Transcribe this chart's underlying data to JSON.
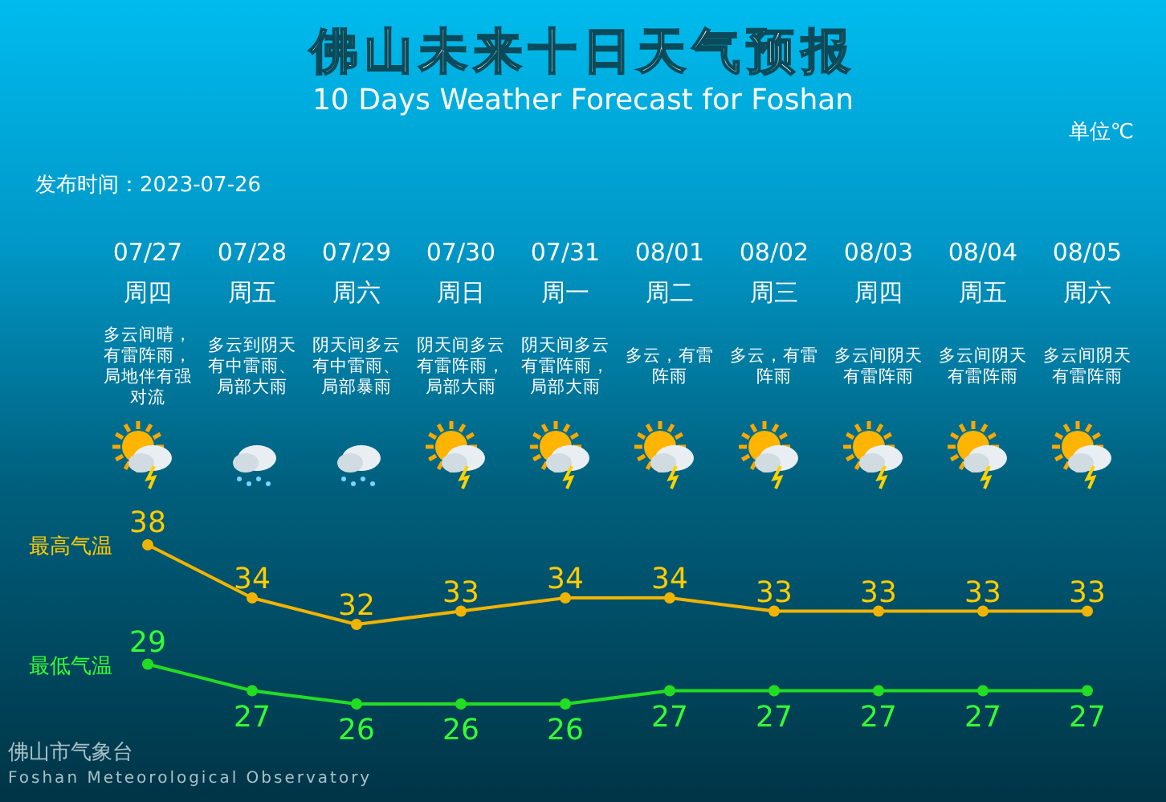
{
  "chart_data": {
    "type": "line",
    "title": "佛山未来十日天气预报",
    "subtitle": "10 Days Weather Forecast for Foshan",
    "categories": [
      "07/27",
      "07/28",
      "07/29",
      "07/30",
      "07/31",
      "08/01",
      "08/02",
      "08/03",
      "08/04",
      "08/05"
    ],
    "series": [
      {
        "name": "最高气温",
        "color": "#f0b400",
        "values": [
          38,
          34,
          32,
          33,
          34,
          34,
          33,
          33,
          33,
          33
        ]
      },
      {
        "name": "最低气温",
        "color": "#22dd22",
        "values": [
          29,
          27,
          26,
          26,
          26,
          27,
          27,
          27,
          27,
          27
        ]
      }
    ],
    "data_labels": true,
    "marker": "circle",
    "line_style": "solid",
    "legend": false,
    "grid": false,
    "annotations": [
      "单位℃",
      "发布时间：2023-07-26",
      "佛山市气象台",
      "Foshan Meteorological Observatory",
      "周四",
      "周五",
      "周六",
      "周日",
      "周一",
      "周二",
      "周三",
      "周四",
      "周五",
      "周六",
      "多云间晴，有雷阵雨，局地伴有强对流",
      "多云到阴天有中雷雨、局部大雨",
      "阴天间多云有中雷雨、局部暴雨",
      "阴天间多云有雷阵雨，局部大雨",
      "阴天间多云有雷阵雨，局部大雨",
      "多云，有雷阵雨",
      "多云，有雷阵雨",
      "多云间阴天有雷阵雨",
      "多云间阴天有雷阵雨",
      "多云间阴天有雷阵雨"
    ]
  }
}
